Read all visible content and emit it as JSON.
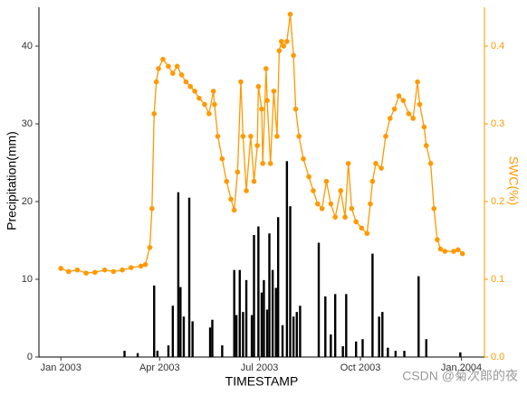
{
  "chart_data": {
    "type": "combo",
    "xlabel": "TIMESTAMP",
    "ylabel": "Precipitation(mm)",
    "y2label": "SWC(%)",
    "watermark": "CSDN @菊次郎的夜",
    "xlim": [
      -20,
      386
    ],
    "xticks": [
      {
        "value": 0,
        "label": "Jan 2003"
      },
      {
        "value": 90,
        "label": "Apr 2003"
      },
      {
        "value": 181,
        "label": "Jul 2003"
      },
      {
        "value": 273,
        "label": "Oct 2003"
      },
      {
        "value": 365,
        "label": "Jan 2004"
      }
    ],
    "ylim": [
      0,
      45
    ],
    "yticks": [
      0,
      10,
      20,
      30,
      40
    ],
    "y2lim": [
      0,
      0.45
    ],
    "y2ticks": [
      {
        "value": 0,
        "label": "0.0"
      },
      0.1,
      0.2,
      0.3,
      0.4
    ],
    "y2color": "#ff9900",
    "series": [
      {
        "type": "bar",
        "color": "#000000",
        "x": [
          58,
          70,
          85,
          88,
          98,
          102,
          107,
          109,
          112,
          117,
          120,
          136,
          138,
          147,
          158,
          160,
          163,
          166,
          169,
          174,
          176,
          180,
          183,
          185,
          188,
          190,
          193,
          196,
          198,
          202,
          206,
          209,
          212,
          215,
          218,
          235,
          241,
          246,
          250,
          257,
          260,
          269,
          275,
          284,
          290,
          293,
          298,
          305,
          313,
          326,
          333,
          364
        ],
        "values": [
          0.8,
          0.5,
          9.2,
          0.8,
          1.5,
          6.6,
          21.2,
          9,
          5.2,
          20.5,
          4.6,
          3.8,
          4.8,
          1.5,
          11.2,
          5.4,
          11.2,
          5.8,
          9.9,
          5.4,
          15.7,
          16.8,
          8.3,
          9.9,
          6.1,
          15.9,
          11.2,
          8.9,
          18,
          4.1,
          25.2,
          19.4,
          5.2,
          5.8,
          6.6,
          14.7,
          7.8,
          2.9,
          8.1,
          1.4,
          8.1,
          2,
          2.3,
          13.3,
          5.2,
          5.8,
          1.2,
          0.8,
          0.8,
          10.4,
          2.3,
          0.6
        ]
      },
      {
        "type": "line",
        "axis": "y2",
        "color": "#ff9900",
        "x": [
          0,
          7,
          15,
          23,
          31,
          40,
          48,
          56,
          64,
          73,
          77,
          81,
          83,
          85,
          87,
          89,
          93,
          98,
          102,
          106,
          110,
          114,
          118,
          122,
          126,
          131,
          135,
          139,
          140,
          143,
          147,
          151,
          155,
          158,
          161,
          164,
          166,
          169,
          173,
          176,
          179,
          180,
          183,
          184,
          187,
          188,
          191,
          194,
          197,
          199,
          201,
          203,
          206,
          209,
          212,
          214,
          217,
          221,
          226,
          230,
          234,
          238,
          242,
          246,
          250,
          255,
          259,
          262,
          265,
          269,
          274,
          279,
          282,
          284,
          287,
          292,
          296,
          300,
          304,
          308,
          312,
          317,
          321,
          325,
          327,
          331,
          333,
          337,
          340,
          343,
          346,
          350,
          358,
          362,
          366
        ],
        "values": [
          0.114,
          0.11,
          0.112,
          0.108,
          0.109,
          0.112,
          0.11,
          0.112,
          0.115,
          0.117,
          0.119,
          0.141,
          0.191,
          0.313,
          0.354,
          0.371,
          0.383,
          0.374,
          0.365,
          0.374,
          0.363,
          0.354,
          0.348,
          0.342,
          0.333,
          0.325,
          0.313,
          0.342,
          0.325,
          0.284,
          0.255,
          0.226,
          0.203,
          0.189,
          0.238,
          0.354,
          0.284,
          0.214,
          0.284,
          0.226,
          0.272,
          0.348,
          0.319,
          0.249,
          0.371,
          0.33,
          0.249,
          0.342,
          0.284,
          0.394,
          0.406,
          0.4,
          0.406,
          0.441,
          0.388,
          0.319,
          0.284,
          0.255,
          0.232,
          0.214,
          0.197,
          0.191,
          0.226,
          0.197,
          0.18,
          0.214,
          0.18,
          0.249,
          0.191,
          0.174,
          0.166,
          0.159,
          0.197,
          0.226,
          0.249,
          0.243,
          0.284,
          0.307,
          0.319,
          0.336,
          0.33,
          0.313,
          0.307,
          0.354,
          0.325,
          0.296,
          0.272,
          0.249,
          0.191,
          0.151,
          0.139,
          0.136,
          0.136,
          0.138,
          0.133
        ]
      }
    ]
  }
}
